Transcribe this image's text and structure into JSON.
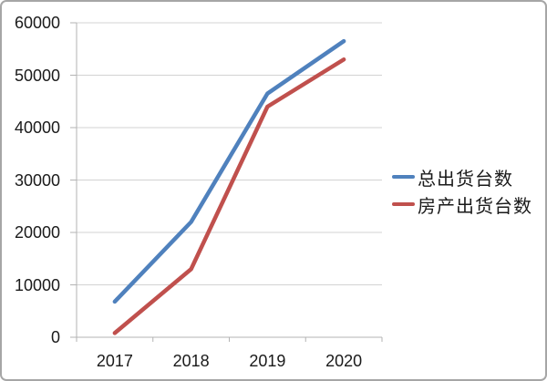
{
  "chart_data": {
    "type": "line",
    "title": "",
    "xlabel": "",
    "ylabel": "",
    "categories": [
      "2017",
      "2018",
      "2019",
      "2020"
    ],
    "series": [
      {
        "name": "总出货台数",
        "color": "#4F81BD",
        "values": [
          6800,
          22000,
          46500,
          56500
        ]
      },
      {
        "name": "房产出货台数",
        "color": "#C0504D",
        "values": [
          800,
          13000,
          44000,
          53000
        ]
      }
    ],
    "ylim": [
      0,
      60000
    ],
    "yticks": [
      0,
      10000,
      20000,
      30000,
      40000,
      50000,
      60000
    ],
    "grid": true,
    "legend_position": "right",
    "colors": {
      "gridline": "#d3d3d3",
      "axis": "#b3b3b3",
      "text": "#1a1a1a",
      "border": "#a6a6a6",
      "background": "#ffffff"
    }
  }
}
